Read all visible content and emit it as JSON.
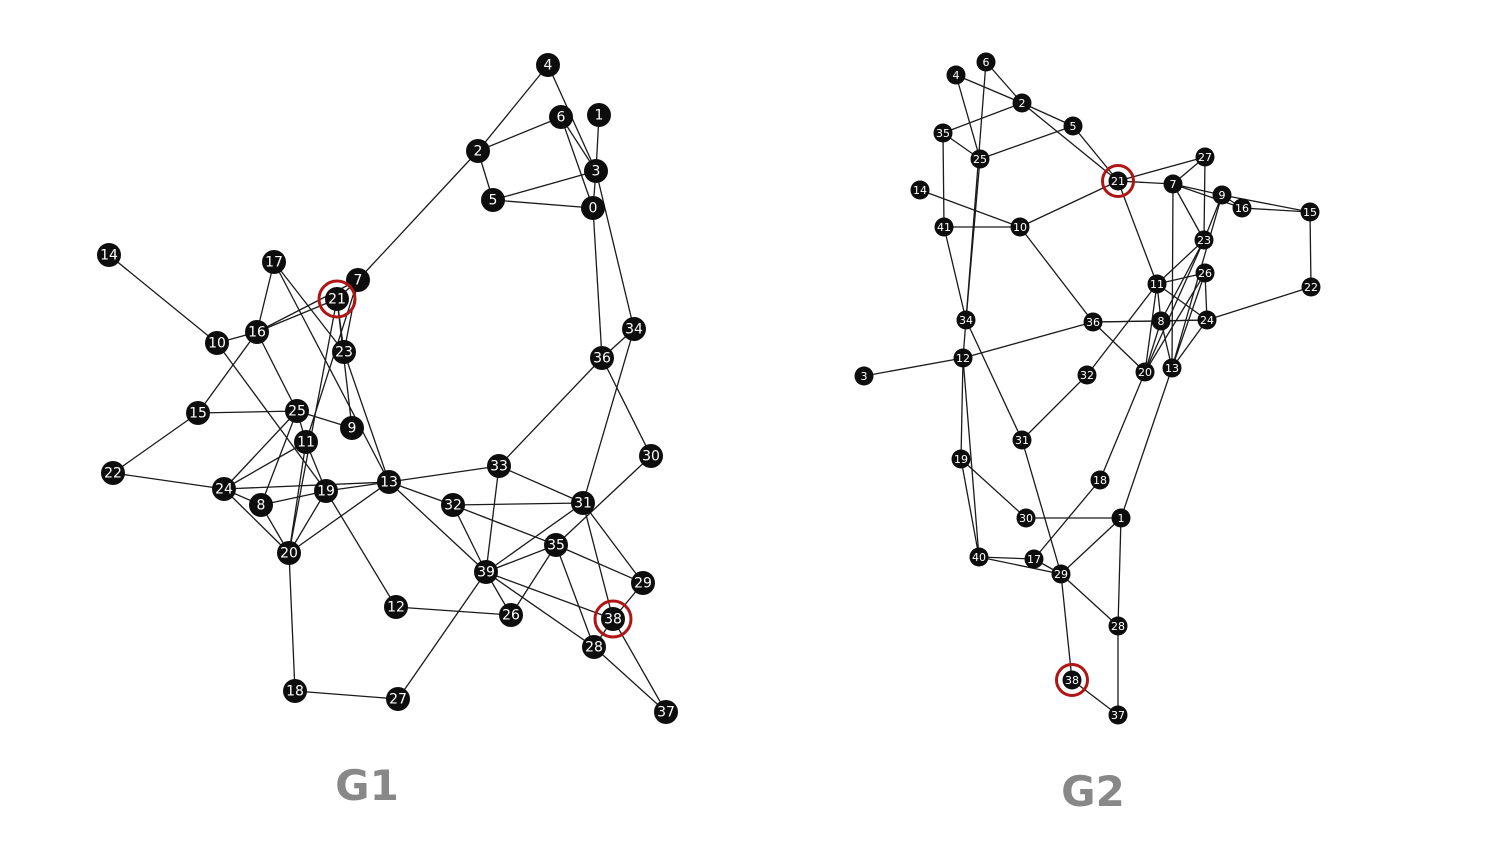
{
  "graphs": [
    {
      "id": "g1",
      "title": "G1",
      "highlighted": [
        "21",
        "38"
      ],
      "nodes": [
        "0",
        "1",
        "2",
        "3",
        "4",
        "5",
        "6",
        "7",
        "8",
        "9",
        "10",
        "11",
        "12",
        "13",
        "14",
        "15",
        "16",
        "17",
        "18",
        "19",
        "20",
        "21",
        "22",
        "23",
        "24",
        "25",
        "26",
        "27",
        "28",
        "29",
        "30",
        "31",
        "32",
        "33",
        "34",
        "35",
        "36",
        "37",
        "38",
        "39"
      ],
      "edges": [
        [
          "4",
          "2"
        ],
        [
          "4",
          "3"
        ],
        [
          "6",
          "2"
        ],
        [
          "6",
          "0"
        ],
        [
          "6",
          "3"
        ],
        [
          "1",
          "3"
        ],
        [
          "2",
          "5"
        ],
        [
          "2",
          "7"
        ],
        [
          "5",
          "3"
        ],
        [
          "5",
          "0"
        ],
        [
          "0",
          "3"
        ],
        [
          "0",
          "36"
        ],
        [
          "3",
          "34"
        ],
        [
          "7",
          "21"
        ],
        [
          "7",
          "16"
        ],
        [
          "7",
          "23"
        ],
        [
          "7",
          "11"
        ],
        [
          "14",
          "10"
        ],
        [
          "17",
          "16"
        ],
        [
          "17",
          "23"
        ],
        [
          "17",
          "13"
        ],
        [
          "16",
          "21"
        ],
        [
          "16",
          "10"
        ],
        [
          "16",
          "15"
        ],
        [
          "16",
          "25"
        ],
        [
          "21",
          "20"
        ],
        [
          "21",
          "9"
        ],
        [
          "21",
          "23"
        ],
        [
          "23",
          "13"
        ],
        [
          "10",
          "19"
        ],
        [
          "15",
          "25"
        ],
        [
          "15",
          "22"
        ],
        [
          "22",
          "24"
        ],
        [
          "25",
          "24"
        ],
        [
          "25",
          "9"
        ],
        [
          "25",
          "11"
        ],
        [
          "25",
          "8"
        ],
        [
          "11",
          "24"
        ],
        [
          "11",
          "19"
        ],
        [
          "11",
          "20"
        ],
        [
          "24",
          "13"
        ],
        [
          "24",
          "20"
        ],
        [
          "24",
          "8"
        ],
        [
          "8",
          "19"
        ],
        [
          "8",
          "20"
        ],
        [
          "19",
          "13"
        ],
        [
          "19",
          "20"
        ],
        [
          "19",
          "12"
        ],
        [
          "20",
          "13"
        ],
        [
          "20",
          "18"
        ],
        [
          "13",
          "33"
        ],
        [
          "13",
          "32"
        ],
        [
          "13",
          "39"
        ],
        [
          "33",
          "39"
        ],
        [
          "33",
          "31"
        ],
        [
          "36",
          "33"
        ],
        [
          "36",
          "34"
        ],
        [
          "36",
          "30"
        ],
        [
          "34",
          "31"
        ],
        [
          "31",
          "32"
        ],
        [
          "31",
          "39"
        ],
        [
          "31",
          "38"
        ],
        [
          "31",
          "29"
        ],
        [
          "30",
          "35"
        ],
        [
          "32",
          "35"
        ],
        [
          "32",
          "39"
        ],
        [
          "35",
          "39"
        ],
        [
          "35",
          "29"
        ],
        [
          "35",
          "26"
        ],
        [
          "35",
          "28"
        ],
        [
          "39",
          "26"
        ],
        [
          "39",
          "28"
        ],
        [
          "39",
          "38"
        ],
        [
          "39",
          "27"
        ],
        [
          "26",
          "12"
        ],
        [
          "38",
          "29"
        ],
        [
          "38",
          "28"
        ],
        [
          "38",
          "37"
        ],
        [
          "28",
          "37"
        ],
        [
          "18",
          "27"
        ]
      ]
    },
    {
      "id": "g2",
      "title": "G2",
      "highlighted": [
        "21",
        "38"
      ],
      "nodes": [
        "1",
        "2",
        "3",
        "4",
        "5",
        "6",
        "7",
        "8",
        "9",
        "10",
        "11",
        "12",
        "13",
        "14",
        "15",
        "16",
        "17",
        "18",
        "19",
        "20",
        "21",
        "22",
        "23",
        "24",
        "25",
        "26",
        "27",
        "28",
        "29",
        "30",
        "31",
        "32",
        "34",
        "35",
        "36",
        "37",
        "38",
        "40",
        "41"
      ],
      "edges": [
        [
          "4",
          "2"
        ],
        [
          "4",
          "25"
        ],
        [
          "6",
          "2"
        ],
        [
          "6",
          "34"
        ],
        [
          "2",
          "35"
        ],
        [
          "2",
          "5"
        ],
        [
          "2",
          "21"
        ],
        [
          "35",
          "25"
        ],
        [
          "35",
          "41"
        ],
        [
          "25",
          "5"
        ],
        [
          "25",
          "34"
        ],
        [
          "5",
          "21"
        ],
        [
          "14",
          "10"
        ],
        [
          "41",
          "10"
        ],
        [
          "41",
          "34"
        ],
        [
          "10",
          "21"
        ],
        [
          "10",
          "36"
        ],
        [
          "21",
          "27"
        ],
        [
          "21",
          "7"
        ],
        [
          "21",
          "11"
        ],
        [
          "27",
          "7"
        ],
        [
          "27",
          "23"
        ],
        [
          "7",
          "9"
        ],
        [
          "7",
          "16"
        ],
        [
          "7",
          "23"
        ],
        [
          "7",
          "13"
        ],
        [
          "9",
          "16"
        ],
        [
          "9",
          "15"
        ],
        [
          "9",
          "23"
        ],
        [
          "9",
          "13"
        ],
        [
          "16",
          "15"
        ],
        [
          "15",
          "22"
        ],
        [
          "23",
          "11"
        ],
        [
          "23",
          "8"
        ],
        [
          "23",
          "20"
        ],
        [
          "26",
          "11"
        ],
        [
          "26",
          "24"
        ],
        [
          "26",
          "20"
        ],
        [
          "26",
          "13"
        ],
        [
          "11",
          "8"
        ],
        [
          "11",
          "24"
        ],
        [
          "11",
          "20"
        ],
        [
          "11",
          "32"
        ],
        [
          "36",
          "8"
        ],
        [
          "36",
          "20"
        ],
        [
          "36",
          "24"
        ],
        [
          "8",
          "24"
        ],
        [
          "8",
          "20"
        ],
        [
          "8",
          "13"
        ],
        [
          "22",
          "24"
        ],
        [
          "24",
          "13"
        ],
        [
          "34",
          "12"
        ],
        [
          "34",
          "31"
        ],
        [
          "3",
          "12"
        ],
        [
          "12",
          "36"
        ],
        [
          "12",
          "19"
        ],
        [
          "12",
          "40"
        ],
        [
          "32",
          "31"
        ],
        [
          "20",
          "18"
        ],
        [
          "13",
          "1"
        ],
        [
          "19",
          "30"
        ],
        [
          "19",
          "40"
        ],
        [
          "30",
          "1"
        ],
        [
          "18",
          "17"
        ],
        [
          "40",
          "17"
        ],
        [
          "40",
          "29"
        ],
        [
          "17",
          "29"
        ],
        [
          "31",
          "29"
        ],
        [
          "29",
          "1"
        ],
        [
          "29",
          "28"
        ],
        [
          "29",
          "38"
        ],
        [
          "1",
          "28"
        ],
        [
          "28",
          "37"
        ],
        [
          "38",
          "37"
        ]
      ]
    }
  ]
}
